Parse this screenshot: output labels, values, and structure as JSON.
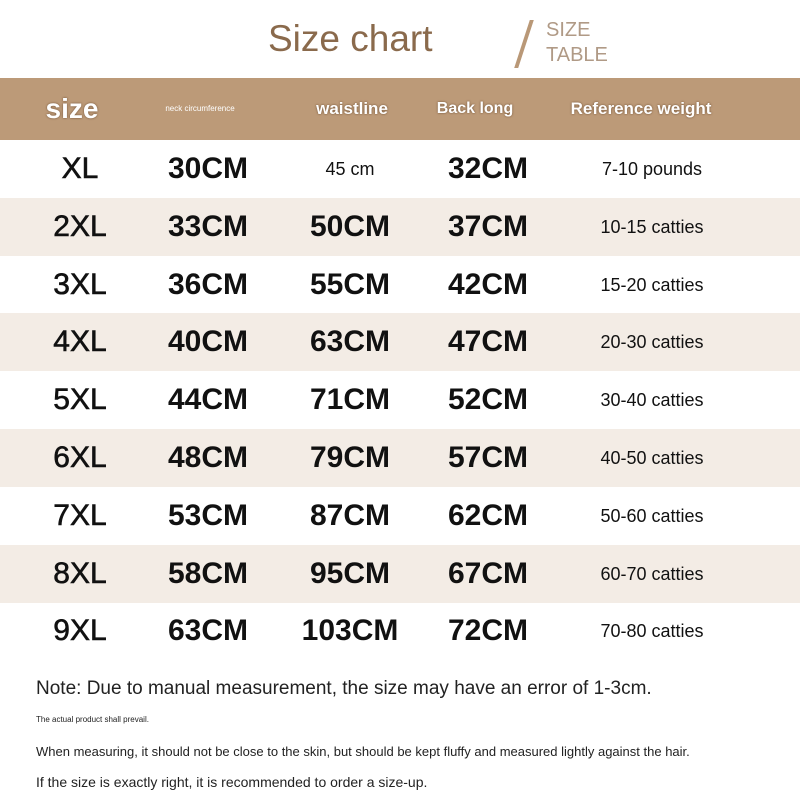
{
  "title": "Size chart",
  "subtitle_line1": "SIZE",
  "subtitle_line2": "TABLE",
  "header_color": "#bc9a78",
  "row_shade_color": "#f3ece5",
  "columns": [
    "size",
    "neck circumference",
    "waistline",
    "Back long",
    "Reference weight"
  ],
  "rows": [
    [
      "XL",
      "30CM",
      "45 cm",
      "32CM",
      "7-10 pounds"
    ],
    [
      "2XL",
      "33CM",
      "50CM",
      "37CM",
      "10-15 catties"
    ],
    [
      "3XL",
      "36CM",
      "55CM",
      "42CM",
      "15-20 catties"
    ],
    [
      "4XL",
      "40CM",
      "63CM",
      "47CM",
      "20-30 catties"
    ],
    [
      "5XL",
      "44CM",
      "71CM",
      "52CM",
      "30-40 catties"
    ],
    [
      "6XL",
      "48CM",
      "79CM",
      "57CM",
      "40-50 catties"
    ],
    [
      "7XL",
      "53CM",
      "87CM",
      "62CM",
      "50-60 catties"
    ],
    [
      "8XL",
      "58CM",
      "95CM",
      "67CM",
      "60-70 catties"
    ],
    [
      "9XL",
      "63CM",
      "103CM",
      "72CM",
      "70-80 catties"
    ]
  ],
  "notes": {
    "main": "Note: Due to manual measurement, the size may have an error of 1-3cm.",
    "small": "The actual product shall prevail.",
    "measuring": "When measuring, it should not be close to the skin, but should be kept fluffy and measured lightly against the hair.",
    "advice": "If the size is exactly right, it is recommended to order a size-up."
  }
}
